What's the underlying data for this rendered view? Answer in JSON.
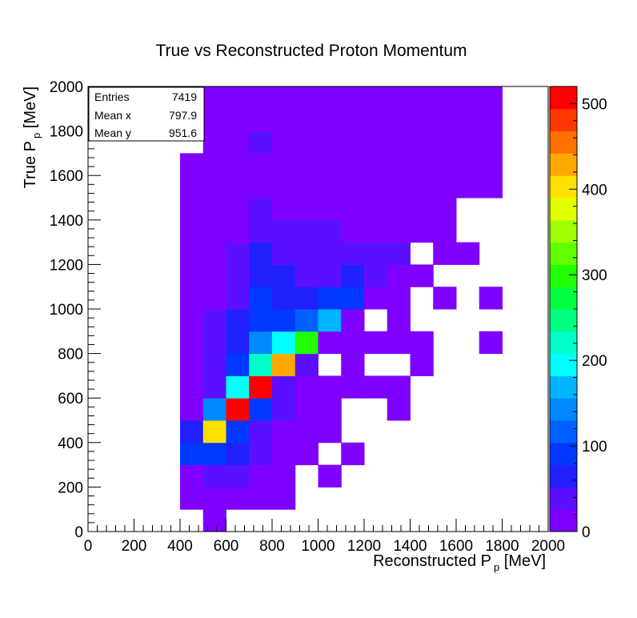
{
  "chart_data": {
    "type": "heatmap",
    "title": "True vs Reconstructed Proton Momentum",
    "xlabel": {
      "main": "Reconstructed P",
      "sub": "p",
      "unit": " [MeV]"
    },
    "ylabel": {
      "main": "True P",
      "sub": "p",
      "unit": " [MeV]"
    },
    "xlim": [
      0,
      2000
    ],
    "ylim": [
      0,
      2000
    ],
    "bin_width": 100,
    "x_ticks": [
      "0",
      "200",
      "400",
      "600",
      "800",
      "1000",
      "1200",
      "1400",
      "1600",
      "1800",
      "2000"
    ],
    "y_ticks": [
      "0",
      "200",
      "400",
      "600",
      "800",
      "1000",
      "1200",
      "1400",
      "1600",
      "1800",
      "2000"
    ],
    "zlim": [
      0,
      520
    ],
    "z_ticks": [
      "0",
      "100",
      "200",
      "300",
      "400",
      "500"
    ],
    "palette": [
      "#7f00ff",
      "#5a10ff",
      "#2020ff",
      "#0038ff",
      "#0060ff",
      "#0088ff",
      "#00b4ff",
      "#00ffff",
      "#00ffc8",
      "#00ff80",
      "#00ff40",
      "#22ff00",
      "#60ff00",
      "#a0ff00",
      "#e0ff00",
      "#ffe000",
      "#ffa800",
      "#ff7000",
      "#ff3800",
      "#ff0000"
    ],
    "cells": [
      {
        "x": 500,
        "y": 0,
        "v": 10
      },
      {
        "x": 400,
        "y": 100,
        "v": 10
      },
      {
        "x": 500,
        "y": 100,
        "v": 10
      },
      {
        "x": 600,
        "y": 100,
        "v": 10
      },
      {
        "x": 700,
        "y": 100,
        "v": 10
      },
      {
        "x": 800,
        "y": 100,
        "v": 10
      },
      {
        "x": 400,
        "y": 200,
        "v": 10
      },
      {
        "x": 500,
        "y": 200,
        "v": 40
      },
      {
        "x": 600,
        "y": 200,
        "v": 40
      },
      {
        "x": 700,
        "y": 200,
        "v": 10
      },
      {
        "x": 800,
        "y": 200,
        "v": 10
      },
      {
        "x": 1000,
        "y": 200,
        "v": 25
      },
      {
        "x": 400,
        "y": 300,
        "v": 90
      },
      {
        "x": 500,
        "y": 300,
        "v": 90
      },
      {
        "x": 600,
        "y": 300,
        "v": 60
      },
      {
        "x": 700,
        "y": 300,
        "v": 35
      },
      {
        "x": 800,
        "y": 300,
        "v": 10
      },
      {
        "x": 900,
        "y": 300,
        "v": 10
      },
      {
        "x": 1100,
        "y": 300,
        "v": 10
      },
      {
        "x": 400,
        "y": 400,
        "v": 60
      },
      {
        "x": 500,
        "y": 400,
        "v": 410
      },
      {
        "x": 600,
        "y": 400,
        "v": 90
      },
      {
        "x": 700,
        "y": 400,
        "v": 35
      },
      {
        "x": 800,
        "y": 400,
        "v": 10
      },
      {
        "x": 900,
        "y": 400,
        "v": 10
      },
      {
        "x": 1000,
        "y": 400,
        "v": 10
      },
      {
        "x": 400,
        "y": 500,
        "v": 10
      },
      {
        "x": 500,
        "y": 500,
        "v": 150
      },
      {
        "x": 600,
        "y": 500,
        "v": 510
      },
      {
        "x": 700,
        "y": 500,
        "v": 90
      },
      {
        "x": 800,
        "y": 500,
        "v": 35
      },
      {
        "x": 900,
        "y": 500,
        "v": 10
      },
      {
        "x": 1000,
        "y": 500,
        "v": 10
      },
      {
        "x": 1300,
        "y": 500,
        "v": 10
      },
      {
        "x": 400,
        "y": 600,
        "v": 10
      },
      {
        "x": 500,
        "y": 600,
        "v": 35
      },
      {
        "x": 600,
        "y": 600,
        "v": 200
      },
      {
        "x": 700,
        "y": 600,
        "v": 510
      },
      {
        "x": 800,
        "y": 600,
        "v": 35
      },
      {
        "x": 900,
        "y": 600,
        "v": 10
      },
      {
        "x": 1000,
        "y": 600,
        "v": 10
      },
      {
        "x": 1100,
        "y": 600,
        "v": 10
      },
      {
        "x": 1200,
        "y": 600,
        "v": 10
      },
      {
        "x": 1300,
        "y": 600,
        "v": 10
      },
      {
        "x": 400,
        "y": 700,
        "v": 10
      },
      {
        "x": 500,
        "y": 700,
        "v": 35
      },
      {
        "x": 600,
        "y": 700,
        "v": 90
      },
      {
        "x": 700,
        "y": 700,
        "v": 230
      },
      {
        "x": 800,
        "y": 700,
        "v": 430
      },
      {
        "x": 900,
        "y": 700,
        "v": 35
      },
      {
        "x": 1100,
        "y": 700,
        "v": 10
      },
      {
        "x": 1400,
        "y": 700,
        "v": 10
      },
      {
        "x": 400,
        "y": 800,
        "v": 10
      },
      {
        "x": 500,
        "y": 800,
        "v": 35
      },
      {
        "x": 600,
        "y": 800,
        "v": 60
      },
      {
        "x": 700,
        "y": 800,
        "v": 150
      },
      {
        "x": 800,
        "y": 800,
        "v": 200
      },
      {
        "x": 900,
        "y": 800,
        "v": 300
      },
      {
        "x": 1000,
        "y": 800,
        "v": 10
      },
      {
        "x": 1100,
        "y": 800,
        "v": 10
      },
      {
        "x": 1200,
        "y": 800,
        "v": 10
      },
      {
        "x": 1300,
        "y": 800,
        "v": 10
      },
      {
        "x": 1400,
        "y": 800,
        "v": 10
      },
      {
        "x": 1700,
        "y": 800,
        "v": 10
      },
      {
        "x": 400,
        "y": 900,
        "v": 10
      },
      {
        "x": 500,
        "y": 900,
        "v": 35
      },
      {
        "x": 600,
        "y": 900,
        "v": 60
      },
      {
        "x": 700,
        "y": 900,
        "v": 90
      },
      {
        "x": 800,
        "y": 900,
        "v": 90
      },
      {
        "x": 900,
        "y": 900,
        "v": 115
      },
      {
        "x": 1000,
        "y": 900,
        "v": 170
      },
      {
        "x": 1100,
        "y": 900,
        "v": 10
      },
      {
        "x": 1300,
        "y": 900,
        "v": 10
      },
      {
        "x": 400,
        "y": 1000,
        "v": 10
      },
      {
        "x": 500,
        "y": 1000,
        "v": 10
      },
      {
        "x": 600,
        "y": 1000,
        "v": 35
      },
      {
        "x": 700,
        "y": 1000,
        "v": 90
      },
      {
        "x": 800,
        "y": 1000,
        "v": 60
      },
      {
        "x": 900,
        "y": 1000,
        "v": 60
      },
      {
        "x": 1000,
        "y": 1000,
        "v": 90
      },
      {
        "x": 1100,
        "y": 1000,
        "v": 90
      },
      {
        "x": 1200,
        "y": 1000,
        "v": 10
      },
      {
        "x": 1300,
        "y": 1000,
        "v": 10
      },
      {
        "x": 1500,
        "y": 1000,
        "v": 10
      },
      {
        "x": 1700,
        "y": 1000,
        "v": 10
      },
      {
        "x": 400,
        "y": 1100,
        "v": 10
      },
      {
        "x": 500,
        "y": 1100,
        "v": 10
      },
      {
        "x": 600,
        "y": 1100,
        "v": 35
      },
      {
        "x": 700,
        "y": 1100,
        "v": 60
      },
      {
        "x": 800,
        "y": 1100,
        "v": 60
      },
      {
        "x": 900,
        "y": 1100,
        "v": 35
      },
      {
        "x": 1000,
        "y": 1100,
        "v": 35
      },
      {
        "x": 1100,
        "y": 1100,
        "v": 60
      },
      {
        "x": 1200,
        "y": 1100,
        "v": 35
      },
      {
        "x": 1300,
        "y": 1100,
        "v": 10
      },
      {
        "x": 1400,
        "y": 1100,
        "v": 10
      },
      {
        "x": 400,
        "y": 1200,
        "v": 10
      },
      {
        "x": 500,
        "y": 1200,
        "v": 10
      },
      {
        "x": 600,
        "y": 1200,
        "v": 35
      },
      {
        "x": 700,
        "y": 1200,
        "v": 60
      },
      {
        "x": 800,
        "y": 1200,
        "v": 35
      },
      {
        "x": 900,
        "y": 1200,
        "v": 35
      },
      {
        "x": 1000,
        "y": 1200,
        "v": 35
      },
      {
        "x": 1100,
        "y": 1200,
        "v": 35
      },
      {
        "x": 1200,
        "y": 1200,
        "v": 35
      },
      {
        "x": 1300,
        "y": 1200,
        "v": 35
      },
      {
        "x": 1500,
        "y": 1200,
        "v": 10
      },
      {
        "x": 1600,
        "y": 1200,
        "v": 10
      },
      {
        "x": 400,
        "y": 1300,
        "v": 10
      },
      {
        "x": 500,
        "y": 1300,
        "v": 10
      },
      {
        "x": 600,
        "y": 1300,
        "v": 10
      },
      {
        "x": 700,
        "y": 1300,
        "v": 35
      },
      {
        "x": 800,
        "y": 1300,
        "v": 35
      },
      {
        "x": 900,
        "y": 1300,
        "v": 35
      },
      {
        "x": 1000,
        "y": 1300,
        "v": 35
      },
      {
        "x": 1100,
        "y": 1300,
        "v": 10
      },
      {
        "x": 1200,
        "y": 1300,
        "v": 10
      },
      {
        "x": 1300,
        "y": 1300,
        "v": 10
      },
      {
        "x": 1400,
        "y": 1300,
        "v": 10
      },
      {
        "x": 1500,
        "y": 1300,
        "v": 10
      },
      {
        "x": 400,
        "y": 1400,
        "v": 10
      },
      {
        "x": 500,
        "y": 1400,
        "v": 10
      },
      {
        "x": 600,
        "y": 1400,
        "v": 10
      },
      {
        "x": 700,
        "y": 1400,
        "v": 35
      },
      {
        "x": 800,
        "y": 1400,
        "v": 10
      },
      {
        "x": 900,
        "y": 1400,
        "v": 10
      },
      {
        "x": 1000,
        "y": 1400,
        "v": 10
      },
      {
        "x": 1100,
        "y": 1400,
        "v": 10
      },
      {
        "x": 1200,
        "y": 1400,
        "v": 10
      },
      {
        "x": 1300,
        "y": 1400,
        "v": 10
      },
      {
        "x": 1400,
        "y": 1400,
        "v": 10
      },
      {
        "x": 1500,
        "y": 1400,
        "v": 10
      },
      {
        "x": 400,
        "y": 1500,
        "v": 10
      },
      {
        "x": 500,
        "y": 1500,
        "v": 10
      },
      {
        "x": 600,
        "y": 1500,
        "v": 10
      },
      {
        "x": 700,
        "y": 1500,
        "v": 10
      },
      {
        "x": 800,
        "y": 1500,
        "v": 10
      },
      {
        "x": 900,
        "y": 1500,
        "v": 10
      },
      {
        "x": 1000,
        "y": 1500,
        "v": 10
      },
      {
        "x": 1100,
        "y": 1500,
        "v": 10
      },
      {
        "x": 1200,
        "y": 1500,
        "v": 10
      },
      {
        "x": 1300,
        "y": 1500,
        "v": 10
      },
      {
        "x": 1400,
        "y": 1500,
        "v": 10
      },
      {
        "x": 1500,
        "y": 1500,
        "v": 10
      },
      {
        "x": 1600,
        "y": 1500,
        "v": 10
      },
      {
        "x": 1700,
        "y": 1500,
        "v": 10
      },
      {
        "x": 400,
        "y": 1600,
        "v": 10
      },
      {
        "x": 500,
        "y": 1600,
        "v": 10
      },
      {
        "x": 600,
        "y": 1600,
        "v": 10
      },
      {
        "x": 700,
        "y": 1600,
        "v": 10
      },
      {
        "x": 800,
        "y": 1600,
        "v": 10
      },
      {
        "x": 900,
        "y": 1600,
        "v": 10
      },
      {
        "x": 1000,
        "y": 1600,
        "v": 10
      },
      {
        "x": 1100,
        "y": 1600,
        "v": 10
      },
      {
        "x": 1200,
        "y": 1600,
        "v": 10
      },
      {
        "x": 1300,
        "y": 1600,
        "v": 10
      },
      {
        "x": 1400,
        "y": 1600,
        "v": 10
      },
      {
        "x": 1500,
        "y": 1600,
        "v": 10
      },
      {
        "x": 1600,
        "y": 1600,
        "v": 10
      },
      {
        "x": 1700,
        "y": 1600,
        "v": 10
      },
      {
        "x": 500,
        "y": 1700,
        "v": 10
      },
      {
        "x": 600,
        "y": 1700,
        "v": 10
      },
      {
        "x": 700,
        "y": 1700,
        "v": 35
      },
      {
        "x": 800,
        "y": 1700,
        "v": 10
      },
      {
        "x": 900,
        "y": 1700,
        "v": 10
      },
      {
        "x": 1000,
        "y": 1700,
        "v": 10
      },
      {
        "x": 1100,
        "y": 1700,
        "v": 10
      },
      {
        "x": 1200,
        "y": 1700,
        "v": 10
      },
      {
        "x": 1300,
        "y": 1700,
        "v": 10
      },
      {
        "x": 1400,
        "y": 1700,
        "v": 10
      },
      {
        "x": 1500,
        "y": 1700,
        "v": 10
      },
      {
        "x": 1600,
        "y": 1700,
        "v": 10
      },
      {
        "x": 1700,
        "y": 1700,
        "v": 10
      },
      {
        "x": 500,
        "y": 1800,
        "v": 10
      },
      {
        "x": 600,
        "y": 1800,
        "v": 10
      },
      {
        "x": 700,
        "y": 1800,
        "v": 10
      },
      {
        "x": 800,
        "y": 1800,
        "v": 10
      },
      {
        "x": 900,
        "y": 1800,
        "v": 10
      },
      {
        "x": 1000,
        "y": 1800,
        "v": 10
      },
      {
        "x": 1100,
        "y": 1800,
        "v": 10
      },
      {
        "x": 1200,
        "y": 1800,
        "v": 10
      },
      {
        "x": 1300,
        "y": 1800,
        "v": 10
      },
      {
        "x": 1400,
        "y": 1800,
        "v": 10
      },
      {
        "x": 1500,
        "y": 1800,
        "v": 10
      },
      {
        "x": 1600,
        "y": 1800,
        "v": 10
      },
      {
        "x": 1700,
        "y": 1800,
        "v": 10
      },
      {
        "x": 500,
        "y": 1900,
        "v": 10
      },
      {
        "x": 600,
        "y": 1900,
        "v": 10
      },
      {
        "x": 700,
        "y": 1900,
        "v": 10
      },
      {
        "x": 800,
        "y": 1900,
        "v": 10
      },
      {
        "x": 900,
        "y": 1900,
        "v": 10
      },
      {
        "x": 1000,
        "y": 1900,
        "v": 10
      },
      {
        "x": 1100,
        "y": 1900,
        "v": 10
      },
      {
        "x": 1200,
        "y": 1900,
        "v": 10
      },
      {
        "x": 1300,
        "y": 1900,
        "v": 10
      },
      {
        "x": 1400,
        "y": 1900,
        "v": 10
      },
      {
        "x": 1500,
        "y": 1900,
        "v": 10
      },
      {
        "x": 1600,
        "y": 1900,
        "v": 10
      },
      {
        "x": 1700,
        "y": 1900,
        "v": 10
      }
    ],
    "stats_box": {
      "rows": [
        {
          "label": "Entries",
          "value": "7419"
        },
        {
          "label": "Mean x",
          "value": "797.9"
        },
        {
          "label": "Mean y",
          "value": "951.6"
        }
      ]
    }
  }
}
